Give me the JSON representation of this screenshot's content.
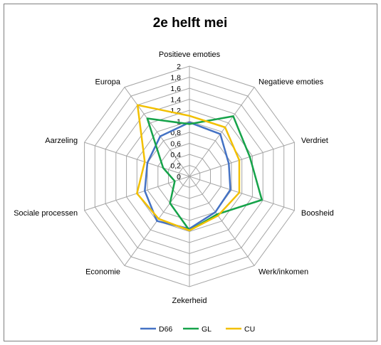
{
  "chart_data": {
    "type": "radar",
    "title": "2e helft mei",
    "categories": [
      "Positieve emoties",
      "Negatieve emoties",
      "Verdriet",
      "Boosheid",
      "Werk/inkomen",
      "Zekerheid",
      "Economie",
      "Sociale processen",
      "Aarzeling",
      "Europa"
    ],
    "rlim": [
      0,
      2
    ],
    "ticks": [
      "0",
      "0,2",
      "0,4",
      "0,6",
      "0,8",
      "1",
      "1,2",
      "1,4",
      "1,6",
      "1,8",
      "2"
    ],
    "grid": true,
    "legend": "bottom",
    "series": [
      {
        "name": "D66",
        "color": "#4472c4",
        "values": [
          0.98,
          0.95,
          0.75,
          0.78,
          0.8,
          0.95,
          1.0,
          0.85,
          0.8,
          0.9
        ]
      },
      {
        "name": "GL",
        "color": "#16a34a",
        "values": [
          0.95,
          1.35,
          1.15,
          1.38,
          0.85,
          0.98,
          0.6,
          0.28,
          0.5,
          1.3
        ]
      },
      {
        "name": "CU",
        "color": "#f2c000",
        "values": [
          1.1,
          1.1,
          0.95,
          0.95,
          0.88,
          0.98,
          0.95,
          1.0,
          0.85,
          1.6
        ]
      }
    ]
  }
}
